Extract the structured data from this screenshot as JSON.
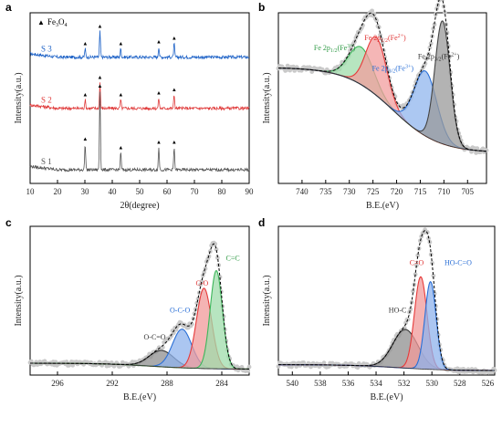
{
  "chart_data": [
    {
      "panel": "a",
      "type": "line",
      "xlabel": "2θ(degree)",
      "ylabel": "Intensity(a.u.)",
      "xlim": [
        10,
        90
      ],
      "xticks": [
        10,
        20,
        30,
        40,
        50,
        60,
        70,
        80,
        90
      ],
      "legend": {
        "marker": "▲",
        "label": "Fe3O4",
        "placement": "top-left"
      },
      "peaks": [
        30.1,
        35.5,
        43.1,
        57.0,
        62.6
      ],
      "series": [
        {
          "name": "S 3",
          "color": "#1f63c7",
          "offset": 0.74,
          "peak_heights": [
            0.05,
            0.15,
            0.05,
            0.06,
            0.08
          ]
        },
        {
          "name": "S 2",
          "color": "#e03c3c",
          "offset": 0.44,
          "peak_heights": [
            0.05,
            0.15,
            0.05,
            0.06,
            0.08
          ]
        },
        {
          "name": "S 1",
          "color": "#555555",
          "offset": 0.08,
          "peak_heights": [
            0.15,
            0.46,
            0.1,
            0.13,
            0.13
          ]
        }
      ]
    },
    {
      "panel": "b",
      "type": "line",
      "xlabel": "B.E.(eV)",
      "ylabel": "Intensity(a.u.)",
      "xlim": [
        745,
        701
      ],
      "xticks": [
        740,
        735,
        730,
        725,
        720,
        715,
        710,
        705
      ],
      "baseline": {
        "start": 0.68,
        "end": 0.18
      },
      "components": [
        {
          "label": "Fe 2p1/2(Fe3+)",
          "center": 727.5,
          "height": 0.22,
          "width": 2.6,
          "color": "#3db55a",
          "fill": "#9fdcab"
        },
        {
          "label": "Fe 2p1/2(Fe2+)",
          "center": 724.3,
          "height": 0.34,
          "width": 2.2,
          "color": "#e63a3a",
          "fill": "#f29e9e"
        },
        {
          "label": "Fe 2p3/2(Fe3+)",
          "center": 713.9,
          "height": 0.38,
          "width": 2.4,
          "color": "#2a6fd6",
          "fill": "#90b6ee"
        },
        {
          "label": "Fe 2p3/2(Fe2+)",
          "center": 710.3,
          "height": 0.72,
          "width": 1.6,
          "color": "#444444",
          "fill": "#9a9a9a"
        }
      ],
      "annotations": [
        {
          "text": "Fe 2p1/2(Fe3+)",
          "x": 737.5,
          "y": 0.78,
          "color": "#2f9a45"
        },
        {
          "text": "Fe 2p1/2(Fe2+)",
          "x": 726.8,
          "y": 0.84,
          "color": "#e03434"
        },
        {
          "text": "Fe 2p3/2(Fe3+)",
          "x": 725.2,
          "y": 0.66,
          "color": "#2a6fd6"
        },
        {
          "text": "Fe 2p3/2(Fe2+)",
          "x": 715.5,
          "y": 0.73,
          "color": "#333333"
        }
      ]
    },
    {
      "panel": "c",
      "type": "line",
      "xlabel": "B.E.(eV)",
      "ylabel": "Intensity(a.u.)",
      "xlim": [
        298,
        282
      ],
      "xticks": [
        296,
        292,
        288,
        284
      ],
      "baseline": {
        "start": 0.08,
        "end": 0.04
      },
      "components": [
        {
          "label": "O-C=O",
          "center": 288.4,
          "height": 0.11,
          "width": 0.9,
          "color": "#333333",
          "fill": "#8f8f8f"
        },
        {
          "label": "O-C-O",
          "center": 286.9,
          "height": 0.26,
          "width": 0.7,
          "color": "#2a6fd6",
          "fill": "#8fb3ec"
        },
        {
          "label": "C-O",
          "center": 285.3,
          "height": 0.54,
          "width": 0.55,
          "color": "#e63a3a",
          "fill": "#f09a9a"
        },
        {
          "label": "C=C",
          "center": 284.4,
          "height": 0.66,
          "width": 0.45,
          "color": "#3db55a",
          "fill": "#9fdcab"
        }
      ],
      "annotations": [
        {
          "text": "O-C=O",
          "x": 289.7,
          "y": 0.24,
          "color": "#333333"
        },
        {
          "text": "O-C-O",
          "x": 287.8,
          "y": 0.42,
          "color": "#2a6fd6"
        },
        {
          "text": "C-O",
          "x": 285.9,
          "y": 0.6,
          "color": "#e03434"
        },
        {
          "text": "C=C",
          "x": 283.7,
          "y": 0.77,
          "color": "#2f9a45"
        }
      ]
    },
    {
      "panel": "d",
      "type": "line",
      "xlabel": "B.E.(eV)",
      "ylabel": "Intensity(a.u.)",
      "xlim": [
        541,
        525.5
      ],
      "xticks": [
        540,
        538,
        536,
        534,
        532,
        530,
        528,
        526
      ],
      "baseline": {
        "start": 0.07,
        "end": 0.03
      },
      "components": [
        {
          "label": "HO-C",
          "center": 531.9,
          "height": 0.26,
          "width": 0.9,
          "color": "#333333",
          "fill": "#8f8f8f"
        },
        {
          "label": "C=O",
          "center": 530.8,
          "height": 0.62,
          "width": 0.45,
          "color": "#e63a3a",
          "fill": "#f09a9a"
        },
        {
          "label": "HO-C=O",
          "center": 530.1,
          "height": 0.59,
          "width": 0.4,
          "color": "#2a6fd6",
          "fill": "#8fb3ec"
        }
      ],
      "annotations": [
        {
          "text": "HO-C",
          "x": 533.1,
          "y": 0.42,
          "color": "#333333"
        },
        {
          "text": "C=O",
          "x": 531.6,
          "y": 0.74,
          "color": "#e03434"
        },
        {
          "text": "HO-C=O",
          "x": 529.1,
          "y": 0.74,
          "color": "#2a6fd6"
        }
      ]
    }
  ]
}
